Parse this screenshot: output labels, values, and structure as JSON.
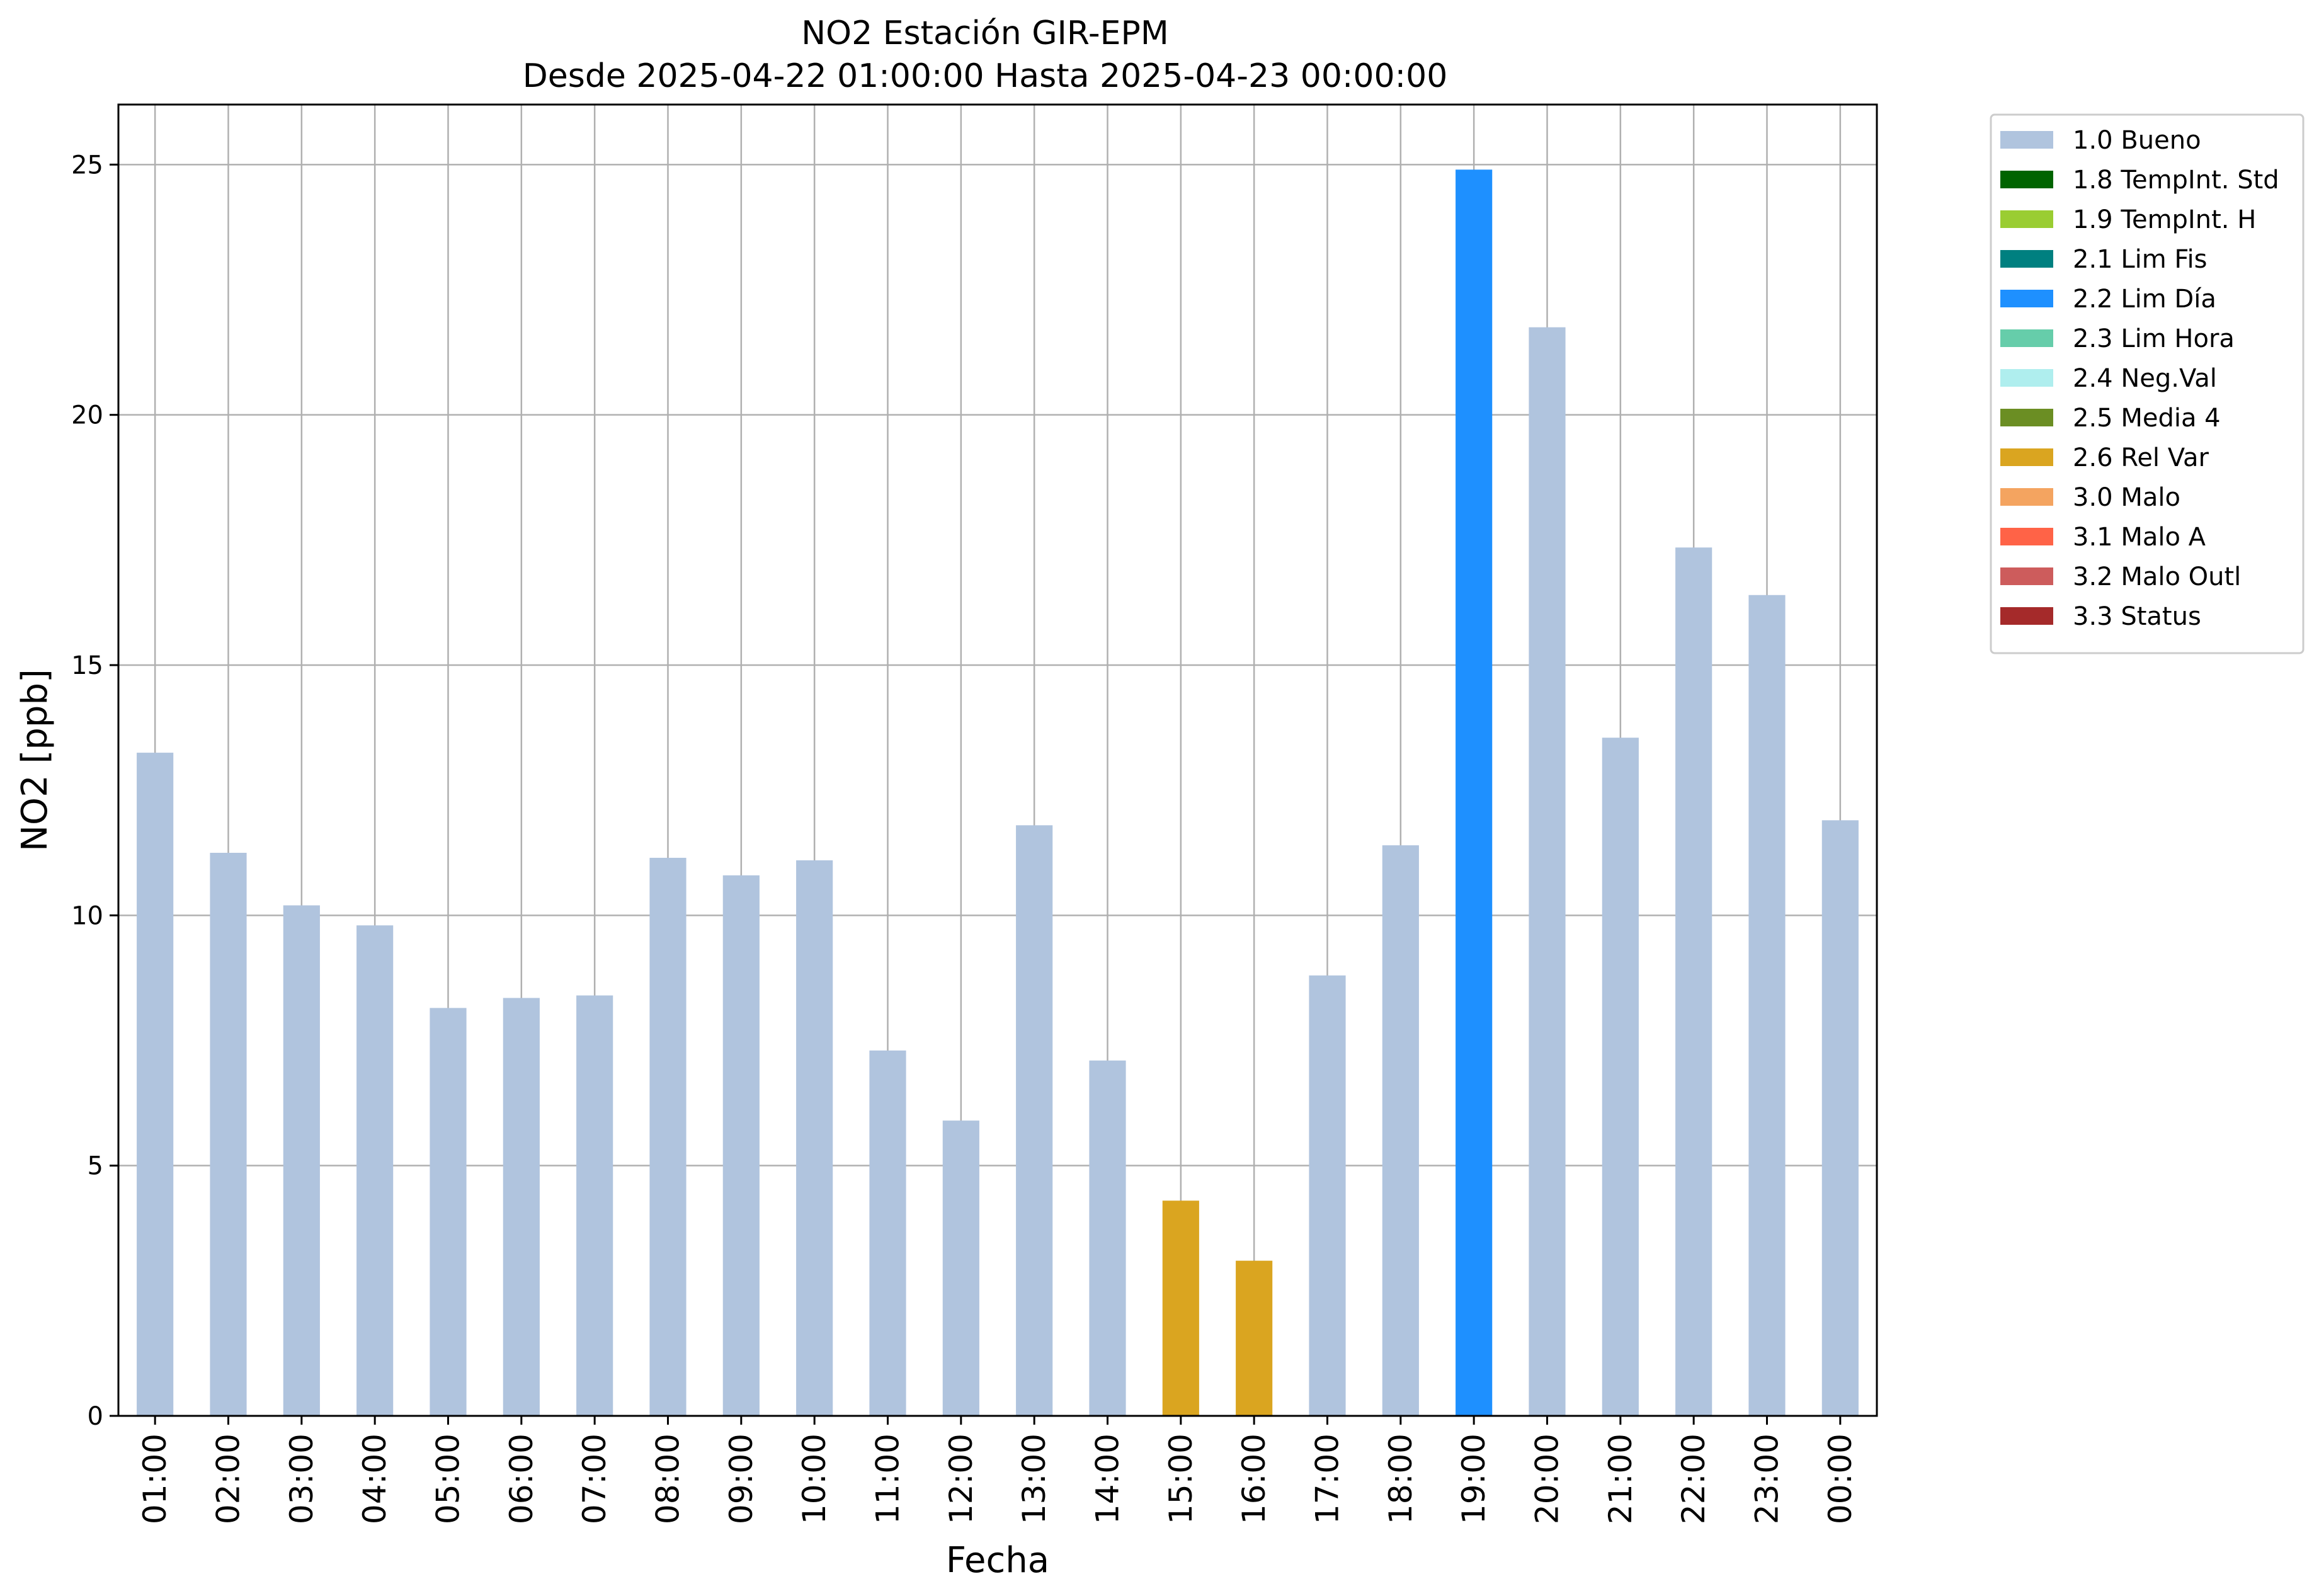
{
  "chart_data": {
    "type": "bar",
    "title": "NO2 Estación GIR-EPM",
    "subtitle": "Desde 2025-04-22 01:00:00 Hasta 2025-04-23 00:00:00",
    "xlabel": "Fecha",
    "ylabel": "NO2 [ppb]",
    "ylim": [
      0,
      26.2
    ],
    "yticks": [
      0,
      5,
      10,
      15,
      20,
      25
    ],
    "grid": true,
    "legend_position": "outside top-right",
    "categories": [
      "01:00",
      "02:00",
      "03:00",
      "04:00",
      "05:00",
      "06:00",
      "07:00",
      "08:00",
      "09:00",
      "10:00",
      "11:00",
      "12:00",
      "13:00",
      "14:00",
      "15:00",
      "16:00",
      "17:00",
      "18:00",
      "19:00",
      "20:00",
      "21:00",
      "22:00",
      "23:00",
      "00:00"
    ],
    "values": [
      13.25,
      11.25,
      10.2,
      9.8,
      8.15,
      8.35,
      8.4,
      11.15,
      10.8,
      11.1,
      7.3,
      5.9,
      11.8,
      7.1,
      4.3,
      3.1,
      8.8,
      11.4,
      24.9,
      21.75,
      13.55,
      17.35,
      16.4,
      11.9
    ],
    "flags": [
      "1.0",
      "1.0",
      "1.0",
      "1.0",
      "1.0",
      "1.0",
      "1.0",
      "1.0",
      "1.0",
      "1.0",
      "1.0",
      "1.0",
      "1.0",
      "1.0",
      "2.6",
      "2.6",
      "1.0",
      "1.0",
      "2.2",
      "1.0",
      "1.0",
      "1.0",
      "1.0",
      "1.0"
    ],
    "legend": [
      {
        "code": "1.0",
        "label": "1.0 Bueno",
        "color": "#b0c4de"
      },
      {
        "code": "1.8",
        "label": "1.8 TempInt. Std",
        "color": "#006400"
      },
      {
        "code": "1.9",
        "label": "1.9 TempInt. H",
        "color": "#9acd32"
      },
      {
        "code": "2.1",
        "label": "2.1 Lim Fis",
        "color": "#008080"
      },
      {
        "code": "2.2",
        "label": "2.2 Lim Día",
        "color": "#1e90ff"
      },
      {
        "code": "2.3",
        "label": "2.3 Lim Hora",
        "color": "#66cdaa"
      },
      {
        "code": "2.4",
        "label": "2.4 Neg.Val",
        "color": "#afeeee"
      },
      {
        "code": "2.5",
        "label": "2.5 Media 4",
        "color": "#6b8e23"
      },
      {
        "code": "2.6",
        "label": "2.6 Rel Var",
        "color": "#daa520"
      },
      {
        "code": "3.0",
        "label": "3.0 Malo",
        "color": "#f4a460"
      },
      {
        "code": "3.1",
        "label": "3.1 Malo A",
        "color": "#ff6347"
      },
      {
        "code": "3.2",
        "label": "3.2 Malo Outl",
        "color": "#cd5c5c"
      },
      {
        "code": "3.3",
        "label": "3.3 Status",
        "color": "#a52a2a"
      }
    ]
  }
}
